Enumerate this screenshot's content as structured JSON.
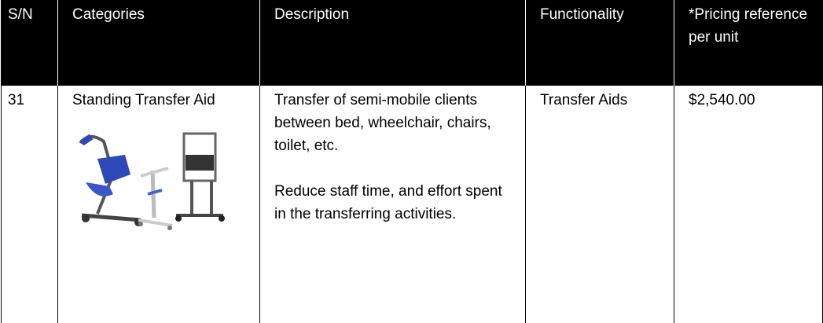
{
  "table": {
    "header": [
      "S/N",
      "Categories",
      "Description",
      "Functionality",
      "*Pricing reference per unit"
    ],
    "rows": [
      [
        "31",
        "Standing Transfer Aid",
        [
          "Transfer of semi-mobile clients between bed, wheelchair, chairs, toilet, etc.",
          "Reduce staff time, and effort spent in the transferring activities."
        ],
        "Transfer Aids",
        "$2,540.00"
      ]
    ]
  }
}
